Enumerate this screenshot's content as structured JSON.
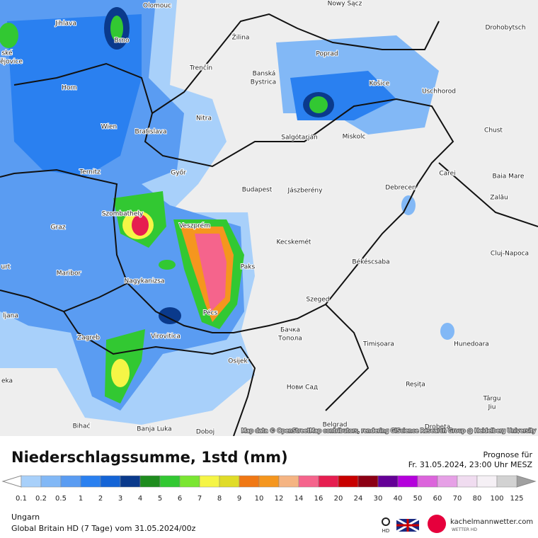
{
  "map": {
    "cities": [
      "Olomouc",
      "Nowy Sącz",
      "Jihlava",
      "Brno",
      "Žilina",
      "Drohobytsch",
      "ské",
      "ějovice",
      "Poprad",
      "Trenčín",
      "Banská",
      "Bystrica",
      "Košice",
      "Horn",
      "Uschhorod",
      "Nitra",
      "Wien",
      "Bratislava",
      "Chust",
      "Salgótarján",
      "Miskolc",
      "Ternitz",
      "Győr",
      "Carei",
      "Baia Mare",
      "Budapest",
      "Jászberény",
      "Debrecen",
      "Zalău",
      "Szombathely",
      "Graz",
      "Veszprém",
      "Kecskemét",
      "Cluj-Napoca",
      "Paks",
      "Békéscsaba",
      "urt",
      "Maribor",
      "Nagykanizsa",
      "Szeged",
      "ljana",
      "Pécs",
      "Zagreb",
      "Virovitica",
      "Бачка",
      "Топола",
      "Timișoara",
      "Hunedoara",
      "Osijek",
      "eka",
      "Нови Сад",
      "Reșița",
      "Târgu",
      "Jiu",
      "Bihać",
      "Banja Luka",
      "Doboj",
      "Belgrad",
      "Drobeta"
    ],
    "attribution": "Map data © OpenStreetMap contributors, rendering GIScience Research Group @ Heidelberg University"
  },
  "legend": {
    "title": "Niederschlagssumme, 1std (mm)",
    "labels": [
      "0.1",
      "0.2",
      "0.5",
      "1",
      "2",
      "3",
      "4",
      "5",
      "6",
      "7",
      "8",
      "9",
      "10",
      "12",
      "14",
      "16",
      "20",
      "24",
      "30",
      "40",
      "50",
      "60",
      "70",
      "80",
      "100",
      "125"
    ],
    "colors": [
      "#a8d0fa",
      "#82b8f6",
      "#5a9cf2",
      "#2a80f0",
      "#1464d6",
      "#0a3a8c",
      "#1e8c1e",
      "#32c832",
      "#7ae632",
      "#f5f546",
      "#e0dc28",
      "#f07814",
      "#f5961e",
      "#f5b482",
      "#f5648c",
      "#e61e50",
      "#c80000",
      "#8c0014",
      "#640096",
      "#b400dc",
      "#dc64dc",
      "#e6a0e6",
      "#f0dcf0",
      "#f5f0f5",
      "#d2d2d2"
    ]
  },
  "header": {
    "forecast_label": "Prognose für",
    "forecast_time": "Fr. 31.05.2024, 23:00 Uhr MESZ"
  },
  "footer": {
    "region": "Ungarn",
    "model": "Global Britain HD (7 Tage) vom 31.05.2024/00z",
    "search_badge": "HD",
    "brand": "kachelmannwetter.com",
    "brand_sub": "WETTER HD"
  }
}
